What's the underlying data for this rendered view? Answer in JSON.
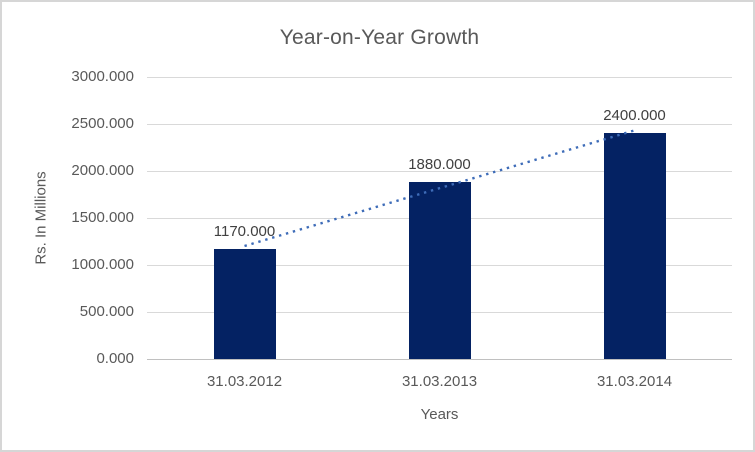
{
  "window": {
    "background": "#ffffff",
    "border_color": "#d6d6d6"
  },
  "chart_data": {
    "type": "bar",
    "title": "Year-on-Year Growth",
    "categories": [
      "31.03.2012",
      "31.03.2013",
      "31.03.2014"
    ],
    "values": [
      1170,
      1880,
      2400
    ],
    "data_labels": [
      "1170.000",
      "1880.000",
      "2400.000"
    ],
    "xlabel": "Years",
    "ylabel": "Rs. In Millions",
    "ylim": [
      0,
      3000
    ],
    "ytick_step": 500,
    "ytick_labels": [
      "0.000",
      "500.000",
      "1000.000",
      "1500.000",
      "2000.000",
      "2500.000",
      "3000.000"
    ],
    "grid": true,
    "legend": "none",
    "bar_color": "#042263",
    "trendline": {
      "type": "linear",
      "style": "dotted",
      "color": "#3e6cb8",
      "start_value": 1202,
      "end_value": 2432
    },
    "colors": {
      "title_text": "#595959",
      "axis_text": "#595959",
      "data_label_text": "#404040",
      "gridline": "#d9d9d9",
      "axis_line": "#c0c0c0"
    }
  }
}
